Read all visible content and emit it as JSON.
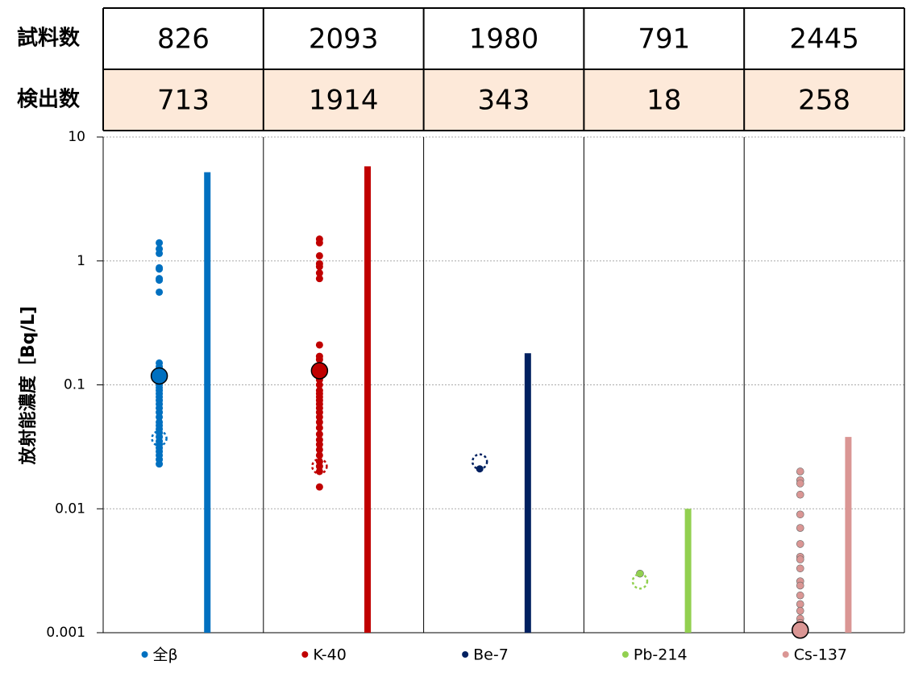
{
  "table": {
    "rows": [
      {
        "label": "試料数",
        "values": [
          826,
          2093,
          1980,
          791,
          2445
        ]
      },
      {
        "label": "検出数",
        "values": [
          713,
          1914,
          343,
          18,
          258
        ]
      }
    ]
  },
  "chart_data": {
    "type": "strip",
    "y_label": "放射能濃度［Bq/L]",
    "log": true,
    "ylim": [
      0.001,
      10
    ],
    "yticks": [
      0.001,
      0.01,
      0.1,
      1,
      10
    ],
    "grid": true,
    "series": [
      {
        "name": "全β",
        "color": "#0070c0",
        "values": [
          1.4,
          1.25,
          1.15,
          0.88,
          0.86,
          0.72,
          0.7,
          0.56,
          0.15,
          0.14,
          0.13,
          0.12,
          0.11,
          0.1,
          0.095,
          0.09,
          0.085,
          0.08,
          0.075,
          0.07,
          0.065,
          0.06,
          0.055,
          0.05,
          0.047,
          0.044,
          0.041,
          0.038,
          0.035,
          0.033,
          0.031,
          0.029,
          0.027,
          0.025,
          0.023
        ],
        "mean": 0.118,
        "dotted": 0.037,
        "max": 5.2
      },
      {
        "name": "K-40",
        "color": "#c00000",
        "values": [
          1.5,
          1.4,
          1.1,
          0.95,
          0.9,
          0.8,
          0.72,
          0.21,
          0.17,
          0.16,
          0.14,
          0.12,
          0.11,
          0.1,
          0.09,
          0.085,
          0.08,
          0.075,
          0.07,
          0.065,
          0.06,
          0.055,
          0.05,
          0.045,
          0.04,
          0.036,
          0.033,
          0.03,
          0.027,
          0.024,
          0.022,
          0.02,
          0.015
        ],
        "mean": 0.13,
        "dotted": 0.022,
        "max": 5.8
      },
      {
        "name": "Be-7",
        "color": "#002060",
        "values": [
          0.021
        ],
        "mean": null,
        "dotted": 0.024,
        "max": 0.18
      },
      {
        "name": "Pb-214",
        "color": "#92d050",
        "values": [
          0.003
        ],
        "mean": null,
        "dotted": 0.0026,
        "max": 0.01
      },
      {
        "name": "Cs-137",
        "color": "#da9694",
        "values": [
          0.02,
          0.017,
          0.016,
          0.013,
          0.009,
          0.007,
          0.0052,
          0.0041,
          0.0039,
          0.0033,
          0.0026,
          0.0024,
          0.002,
          0.0017,
          0.0015,
          0.0013,
          0.0012
        ],
        "mean": 0.00105,
        "dotted": null,
        "max": 0.038
      }
    ]
  }
}
